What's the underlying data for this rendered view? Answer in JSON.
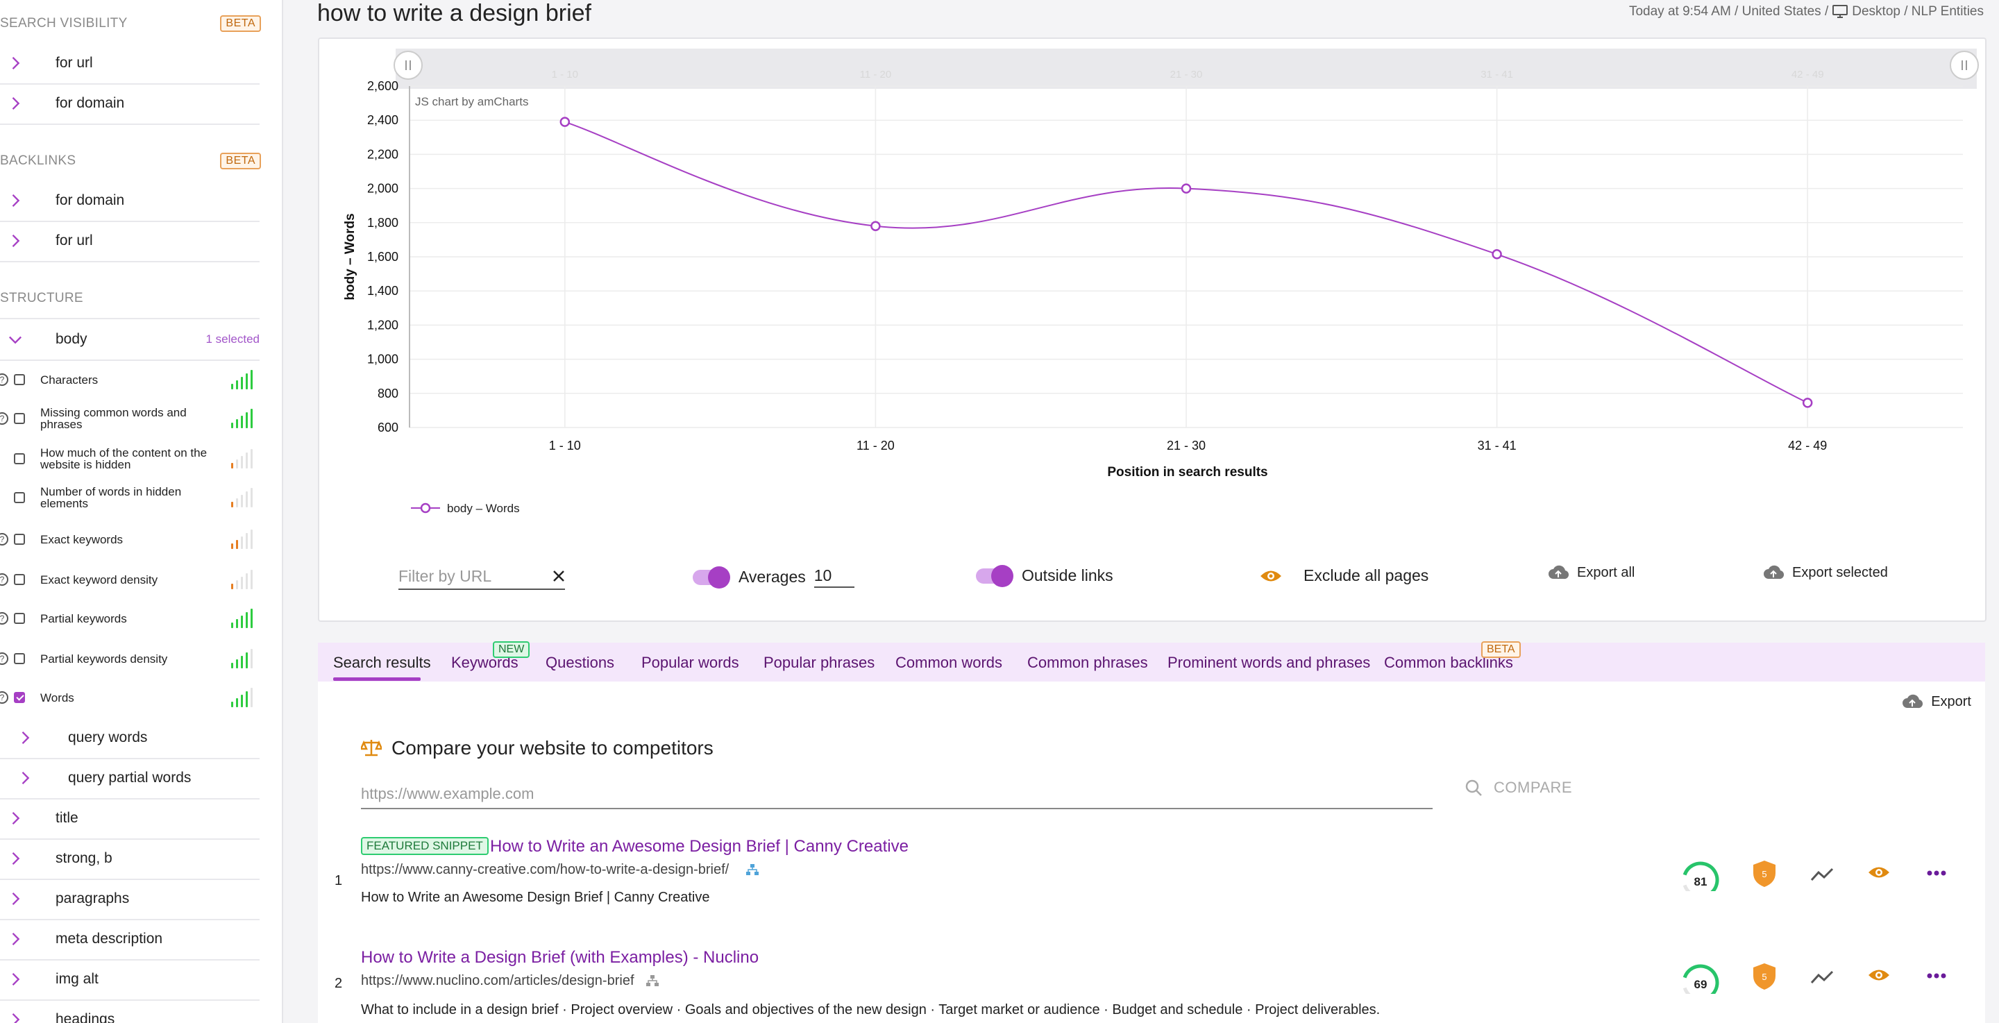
{
  "sidebar": {
    "search_visibility": {
      "title": "SEARCH VISIBILITY",
      "badge": "BETA",
      "items": [
        "for url",
        "for domain"
      ]
    },
    "backlinks": {
      "title": "BACKLINKS",
      "badge": "BETA",
      "items": [
        "for domain",
        "for url"
      ]
    },
    "structure": {
      "title": "STRUCTURE",
      "body_label": "body",
      "body_selected": "1 selected",
      "metrics": [
        {
          "label": "Characters",
          "checked": false,
          "strength": 5,
          "color": "#2ecc40"
        },
        {
          "label": "Missing common words and phrases",
          "checked": false,
          "strength": 5,
          "color": "#2ecc40"
        },
        {
          "label": "How much of the content on the website is hidden",
          "checked": false,
          "strength": 1,
          "color": "#e67e22"
        },
        {
          "label": "Number of words in hidden elements",
          "checked": false,
          "strength": 1,
          "color": "#e67e22"
        },
        {
          "label": "Exact keywords",
          "checked": false,
          "strength": 2,
          "color": "#e67e22"
        },
        {
          "label": "Exact keyword density",
          "checked": false,
          "strength": 1,
          "color": "#e67e22"
        },
        {
          "label": "Partial keywords",
          "checked": false,
          "strength": 5,
          "color": "#2ecc40"
        },
        {
          "label": "Partial keywords density",
          "checked": false,
          "strength": 4,
          "color": "#2ecc40"
        },
        {
          "label": "Words",
          "checked": true,
          "strength": 4,
          "color": "#2ecc40"
        }
      ],
      "sub_items": [
        "query words",
        "query partial words"
      ],
      "items": [
        "title",
        "strong, b",
        "paragraphs",
        "meta description",
        "img alt",
        "headings"
      ]
    }
  },
  "header": {
    "title": "how to write a design brief",
    "meta_time": "Today at 9:54 AM / United States /",
    "meta_device": "Desktop / NLP Entities"
  },
  "chart_data": {
    "type": "line",
    "categories": [
      "1 - 10",
      "11 - 20",
      "21 - 30",
      "31 - 41",
      "42 - 49"
    ],
    "series": [
      {
        "name": "body – Words",
        "values": [
          2390,
          1780,
          2000,
          1615,
          745
        ],
        "color": "#a63fc4"
      }
    ],
    "xlabel": "Position in search results",
    "ylabel": "body – Words",
    "ylim": [
      600,
      2600
    ],
    "yticks": [
      600,
      800,
      1000,
      1200,
      1400,
      1600,
      1800,
      2000,
      2200,
      2400,
      2600
    ],
    "watermark": "JS chart by amCharts",
    "grid": true,
    "legend": "bottom-left"
  },
  "controls": {
    "filter_placeholder": "Filter by URL",
    "averages_label": "Averages",
    "averages_value": "10",
    "outside_links_label": "Outside links",
    "exclude_label": "Exclude all pages",
    "export_all": "Export all",
    "export_selected": "Export selected"
  },
  "tabs": [
    {
      "label": "Search results",
      "active": true
    },
    {
      "label": "Keywords",
      "badge": "NEW"
    },
    {
      "label": "Questions"
    },
    {
      "label": "Popular words"
    },
    {
      "label": "Popular phrases"
    },
    {
      "label": "Common words"
    },
    {
      "label": "Common phrases"
    },
    {
      "label": "Prominent words and phrases"
    },
    {
      "label": "Common backlinks",
      "badge": "BETA"
    }
  ],
  "results_panel": {
    "export_label": "Export",
    "compare_title": "Compare your website to competitors",
    "compare_placeholder": "https://www.example.com",
    "compare_button": "COMPARE",
    "results": [
      {
        "rank": "1",
        "badge": "FEATURED SNIPPET",
        "title": "How to Write an Awesome Design Brief | Canny Creative",
        "url": "https://www.canny-creative.com/how-to-write-a-design-brief/",
        "description": "How to Write an Awesome Design Brief | Canny Creative",
        "score": "81",
        "score_fraction": 0.81,
        "shield": "5"
      },
      {
        "rank": "2",
        "badge": "",
        "title": "How to Write a Design Brief (with Examples) - Nuclino",
        "url": "https://www.nuclino.com/articles/design-brief",
        "description": "What to include in a design brief · Project overview · Goals and objectives of the new design · Target market or audience · Budget and schedule · Project deliverables.",
        "score": "69",
        "score_fraction": 0.69,
        "shield": "5"
      }
    ]
  }
}
